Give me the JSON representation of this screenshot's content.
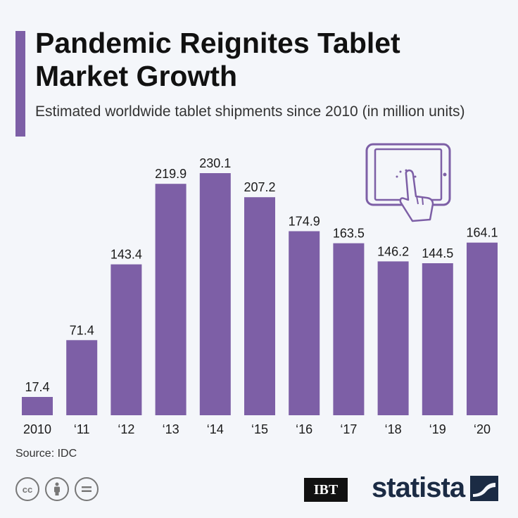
{
  "header": {
    "title": "Pandemic Reignites Tablet Market Growth",
    "subtitle": "Estimated worldwide tablet shipments since 2010 (in million units)"
  },
  "footer": {
    "source": "Source: IDC",
    "partner_logo": "IBT",
    "brand": "statista",
    "license_icons": [
      "cc-icon",
      "attribution-icon",
      "no-derivatives-icon"
    ]
  },
  "colors": {
    "bar": "#7d5fa6",
    "accent": "#7d5fa6",
    "background": "#f4f6fa"
  },
  "chart_data": {
    "type": "bar",
    "title": "Pandemic Reignites Tablet Market Growth",
    "subtitle": "Estimated worldwide tablet shipments since 2010 (in million units)",
    "categories": [
      "2010",
      "‘11",
      "‘12",
      "‘13",
      "‘14",
      "‘15",
      "‘16",
      "‘17",
      "‘18",
      "‘19",
      "‘20"
    ],
    "values": [
      17.4,
      71.4,
      143.4,
      219.9,
      230.1,
      207.2,
      174.9,
      163.5,
      146.2,
      144.5,
      164.1
    ],
    "value_labels": [
      "17.4",
      "71.4",
      "143.4",
      "219.9",
      "230.1",
      "207.2",
      "174.9",
      "163.5",
      "146.2",
      "144.5",
      "164.1"
    ],
    "xlabel": "",
    "ylabel": "",
    "ylim": [
      0,
      230.1
    ],
    "grid": false,
    "legend": "none"
  }
}
